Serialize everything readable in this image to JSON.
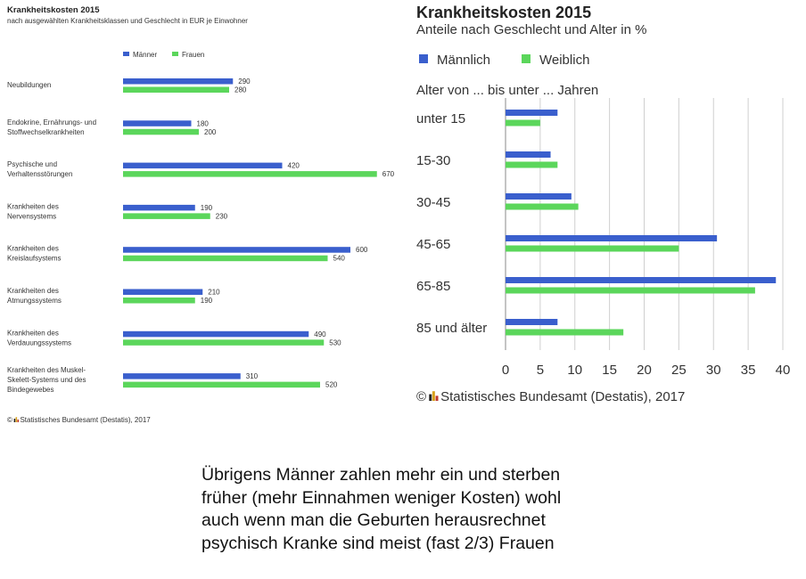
{
  "chart_data": [
    {
      "type": "bar",
      "orientation": "horizontal",
      "title": "Krankheitskosten 2015",
      "subtitle": "nach ausgewählten Krankheitsklassen und Geschlecht in EUR je Einwohner",
      "categories": [
        [
          "Neubildungen"
        ],
        [
          "Endokrine, Ernährungs- und",
          "Stoffwechselkrankheiten"
        ],
        [
          "Psychische und",
          "Verhaltensstörungen"
        ],
        [
          "Krankheiten des",
          "Nervensystems"
        ],
        [
          "Krankheiten des",
          "Kreislaufsystems"
        ],
        [
          "Krankheiten des",
          "Atmungssystems"
        ],
        [
          "Krankheiten des",
          "Verdauungssystems"
        ],
        [
          "Krankheiten des Muskel-",
          "Skelett-Systems und des",
          "Bindegewebes"
        ]
      ],
      "series": [
        {
          "name": "Männer",
          "color": "#3a5fcd",
          "values": [
            290,
            180,
            420,
            190,
            600,
            210,
            490,
            310
          ]
        },
        {
          "name": "Frauen",
          "color": "#5bd65b",
          "values": [
            280,
            200,
            670,
            230,
            540,
            190,
            530,
            520
          ]
        }
      ],
      "xlim": [
        0,
        700
      ],
      "legend": "top",
      "source": "Statistisches Bundesamt (Destatis), 2017"
    },
    {
      "type": "bar",
      "orientation": "horizontal",
      "title": "Krankheitskosten 2015",
      "subtitle": "Anteile nach Geschlecht und Alter in %",
      "axis_title": "Alter von ... bis unter ... Jahren",
      "categories": [
        "unter 15",
        "15-30",
        "30-45",
        "45-65",
        "65-85",
        "85 und älter"
      ],
      "series": [
        {
          "name": "Männlich",
          "color": "#3a5fcd",
          "values": [
            7.5,
            6.5,
            9.5,
            30.5,
            39,
            7.5
          ]
        },
        {
          "name": "Weiblich",
          "color": "#5bd65b",
          "values": [
            5,
            7.5,
            10.5,
            25,
            36,
            17
          ]
        }
      ],
      "ticks": [
        "0",
        "5",
        "10",
        "15",
        "20",
        "25",
        "30",
        "35",
        "40"
      ],
      "xlim": [
        0,
        40
      ],
      "grid": true,
      "legend": "top-left",
      "source": "Statistisches Bundesamt (Destatis), 2017"
    }
  ],
  "note": "Übrigens Männer zahlen mehr ein und sterben\nfrüher (mehr Einnahmen weniger Kosten) wohl\nauch wenn man die Geburten herausrechnet\npsychisch Kranke sind meist (fast 2/3) Frauen"
}
